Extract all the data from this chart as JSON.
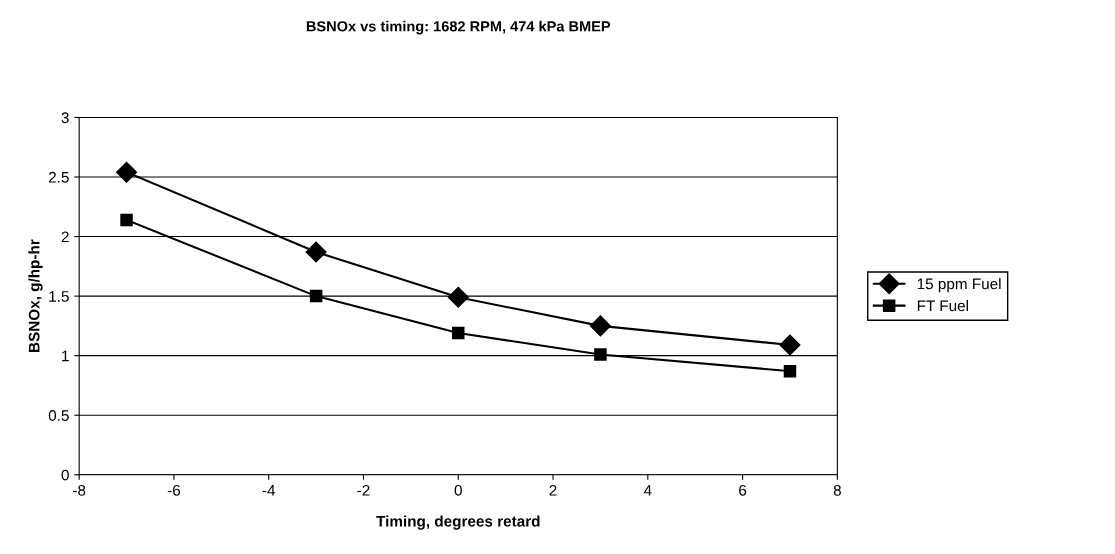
{
  "chart_data": {
    "type": "line",
    "title": "BSNOx vs timing: 1682 RPM, 474 kPa BMEP",
    "xlabel": "Timing, degrees retard",
    "ylabel": "BSNOx, g/hp-hr",
    "x": [
      -7,
      -3,
      0,
      3,
      7
    ],
    "series": [
      {
        "name": "15 ppm Fuel",
        "color": "#000000",
        "marker": "diamond",
        "values": [
          2.54,
          1.87,
          1.49,
          1.25,
          1.09
        ]
      },
      {
        "name": "FT Fuel",
        "color": "#000000",
        "marker": "square",
        "values": [
          2.14,
          1.5,
          1.19,
          1.01,
          0.87
        ]
      }
    ],
    "xlim": [
      -8,
      8
    ],
    "xticks": [
      -8,
      -6,
      -4,
      -2,
      0,
      2,
      4,
      6,
      8
    ],
    "ylim": [
      0,
      3
    ],
    "yticks": [
      0,
      0.5,
      1,
      1.5,
      2,
      2.5,
      3
    ],
    "grid": "y",
    "legend": "right",
    "line_style": "solid"
  }
}
